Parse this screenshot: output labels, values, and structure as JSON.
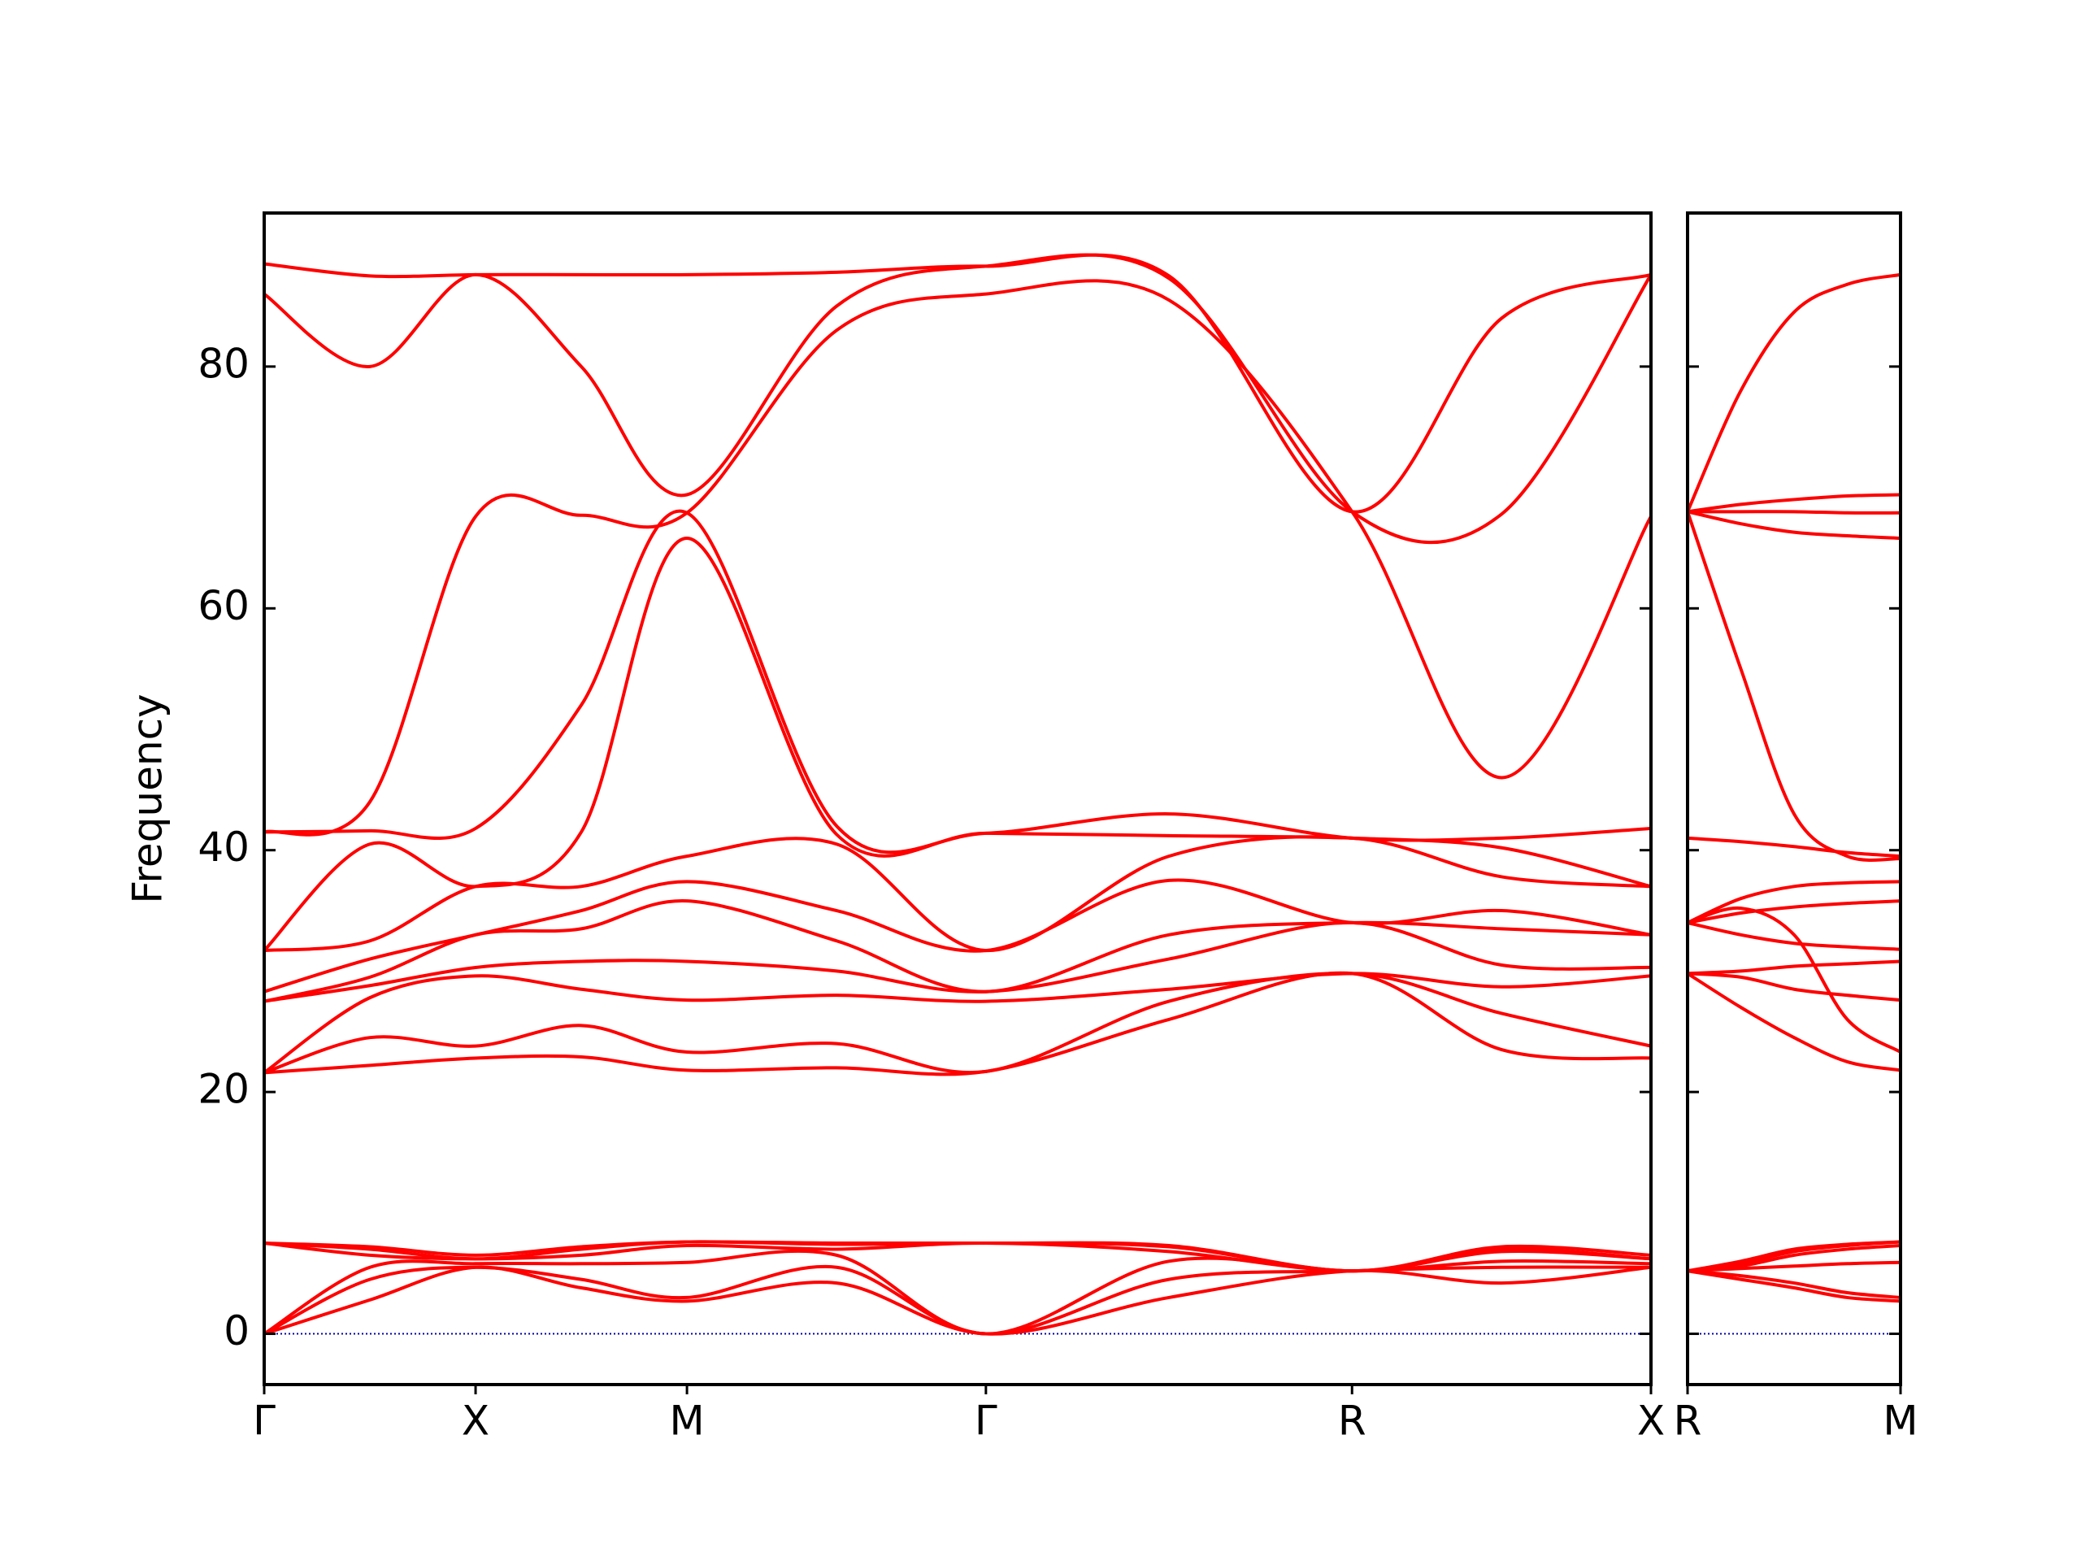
{
  "chart_data": [
    {
      "type": "line",
      "ylabel": "Frequency",
      "x": [
        0,
        0.25,
        0.5,
        0.75,
        1.0,
        1.354,
        1.7071,
        2.14,
        2.5731,
        2.927,
        3.2802
      ],
      "xlim": [
        0,
        3.2802
      ],
      "xticks": [
        {
          "value": 0,
          "label": "Γ"
        },
        {
          "value": 0.5,
          "label": "X"
        },
        {
          "value": 1.0,
          "label": "M"
        },
        {
          "value": 1.7071,
          "label": "Γ"
        },
        {
          "value": 2.5731,
          "label": "R"
        },
        {
          "value": 3.2802,
          "label": "X"
        }
      ],
      "ylim": [
        -4.2,
        92.7
      ],
      "yticks": [
        0,
        20,
        40,
        60,
        80
      ],
      "hline": {
        "y": 0,
        "color": "#0000aa"
      },
      "series": [
        {
          "color": "#ff0000",
          "values": [
            0,
            2.8,
            5.5,
            3.8,
            2.7,
            4.2,
            0,
            3.0,
            5.2,
            4.2,
            5.5
          ]
        },
        {
          "color": "#ff0000",
          "values": [
            0,
            4.5,
            5.5,
            4.5,
            3.0,
            5.5,
            0,
            4.5,
            5.2,
            5.5,
            5.5
          ]
        },
        {
          "color": "#ff0000",
          "values": [
            0,
            5.5,
            5.8,
            5.8,
            5.9,
            6.5,
            0,
            6.0,
            5.2,
            6.0,
            5.8
          ]
        },
        {
          "color": "#ff0000",
          "values": [
            7.5,
            6.5,
            6.2,
            6.5,
            7.3,
            7.0,
            7.5,
            6.8,
            5.2,
            6.8,
            6.2
          ]
        },
        {
          "color": "#ff0000",
          "values": [
            7.5,
            7.0,
            6.2,
            7.0,
            7.6,
            7.4,
            7.5,
            7.2,
            5.2,
            7.0,
            6.2
          ]
        },
        {
          "color": "#ff0000",
          "values": [
            7.5,
            7.2,
            6.5,
            7.2,
            7.6,
            7.5,
            7.5,
            7.3,
            5.2,
            7.2,
            6.5
          ]
        },
        {
          "color": "#ff0000",
          "values": [
            21.6,
            22.2,
            22.8,
            22.9,
            21.8,
            22,
            21.7,
            26,
            29.8,
            23.5,
            22.8
          ]
        },
        {
          "color": "#ff0000",
          "values": [
            21.6,
            24.5,
            23.8,
            25.5,
            23.3,
            24,
            21.7,
            27.5,
            29.8,
            26.5,
            23.8
          ]
        },
        {
          "color": "#ff0000",
          "values": [
            21.6,
            27.8,
            29.6,
            28.5,
            27.6,
            28,
            27.5,
            28.5,
            29.8,
            28.7,
            29.6
          ]
        },
        {
          "color": "#ff0000",
          "values": [
            27.5,
            28.8,
            30.3,
            30.8,
            30.8,
            30,
            28.3,
            31,
            34,
            30.5,
            30.3
          ]
        },
        {
          "color": "#ff0000",
          "values": [
            27.5,
            29.5,
            33,
            33.5,
            35.8,
            32.5,
            28.3,
            33,
            34,
            33.5,
            33
          ]
        },
        {
          "color": "#ff0000",
          "values": [
            28.3,
            31.0,
            33,
            35,
            37.4,
            35,
            31.7,
            37.5,
            34,
            35,
            33
          ]
        },
        {
          "color": "#ff0000",
          "values": [
            31.7,
            32.5,
            37,
            37,
            39.5,
            40.5,
            31.7,
            39.5,
            41,
            37.8,
            37
          ]
        },
        {
          "color": "#ff0000",
          "values": [
            31.7,
            40.5,
            37,
            41.5,
            65.8,
            41.3,
            41.4,
            41.2,
            41,
            40.2,
            37
          ]
        },
        {
          "color": "#ff0000",
          "values": [
            41.5,
            41.6,
            41.8,
            52,
            67.9,
            42,
            41.4,
            43,
            41,
            41,
            41.8
          ]
        },
        {
          "color": "#ff0000",
          "values": [
            41.5,
            44,
            67.6,
            67.7,
            67.9,
            83,
            86,
            85.5,
            68,
            46,
            67.6
          ]
        },
        {
          "color": "#ff0000",
          "values": [
            86,
            80,
            87.6,
            80,
            69.4,
            85,
            88.3,
            87.3,
            68,
            67.8,
            87.6
          ]
        },
        {
          "color": "#ff0000",
          "values": [
            88.5,
            87.5,
            87.6,
            87.6,
            87.6,
            87.8,
            88.3,
            87.5,
            68,
            84,
            87.6
          ]
        }
      ]
    },
    {
      "type": "line",
      "x": [
        0,
        0.125,
        0.25,
        0.375,
        0.5
      ],
      "xlim": [
        0,
        0.5
      ],
      "xticks": [
        {
          "value": 0,
          "label": "R"
        },
        {
          "value": 0.5,
          "label": "M"
        }
      ],
      "ylim": [
        -4.2,
        92.7
      ],
      "yticks": [
        0,
        20,
        40,
        60,
        80
      ],
      "hline": {
        "y": 0,
        "color": "#0000aa"
      },
      "series": [
        {
          "color": "#ff0000",
          "values": [
            5.2,
            4.5,
            3.8,
            3.0,
            2.7
          ]
        },
        {
          "color": "#ff0000",
          "values": [
            5.2,
            4.8,
            4.2,
            3.4,
            3.0
          ]
        },
        {
          "color": "#ff0000",
          "values": [
            5.2,
            5.4,
            5.6,
            5.8,
            5.9
          ]
        },
        {
          "color": "#ff0000",
          "values": [
            5.2,
            5.6,
            6.5,
            7.0,
            7.3
          ]
        },
        {
          "color": "#ff0000",
          "values": [
            5.2,
            5.8,
            6.8,
            7.3,
            7.6
          ]
        },
        {
          "color": "#ff0000",
          "values": [
            5.2,
            6.0,
            7.0,
            7.4,
            7.6
          ]
        },
        {
          "color": "#ff0000",
          "values": [
            29.8,
            27,
            24.5,
            22.5,
            21.8
          ]
        },
        {
          "color": "#ff0000",
          "values": [
            29.8,
            29.5,
            28.5,
            28,
            27.6
          ]
        },
        {
          "color": "#ff0000",
          "values": [
            29.8,
            30,
            30.4,
            30.6,
            30.8
          ]
        },
        {
          "color": "#ff0000",
          "values": [
            34,
            33,
            32.3,
            32,
            31.8
          ]
        },
        {
          "color": "#ff0000",
          "values": [
            34,
            34.8,
            35.3,
            35.6,
            35.8
          ]
        },
        {
          "color": "#ff0000",
          "values": [
            34,
            35.2,
            33,
            26,
            23.3
          ]
        },
        {
          "color": "#ff0000",
          "values": [
            34,
            36,
            37,
            37.3,
            37.4
          ]
        },
        {
          "color": "#ff0000",
          "values": [
            41,
            40.7,
            40.3,
            39.8,
            39.5
          ]
        },
        {
          "color": "#ff0000",
          "values": [
            68,
            55,
            43,
            39.5,
            39.3
          ]
        },
        {
          "color": "#ff0000",
          "values": [
            68,
            67,
            66.3,
            66,
            65.8
          ]
        },
        {
          "color": "#ff0000",
          "values": [
            68,
            68,
            68,
            67.9,
            67.9
          ]
        },
        {
          "color": "#ff0000",
          "values": [
            68,
            68.6,
            69,
            69.3,
            69.4
          ]
        },
        {
          "color": "#ff0000",
          "values": [
            68,
            78,
            84.5,
            86.8,
            87.6
          ]
        }
      ]
    }
  ]
}
